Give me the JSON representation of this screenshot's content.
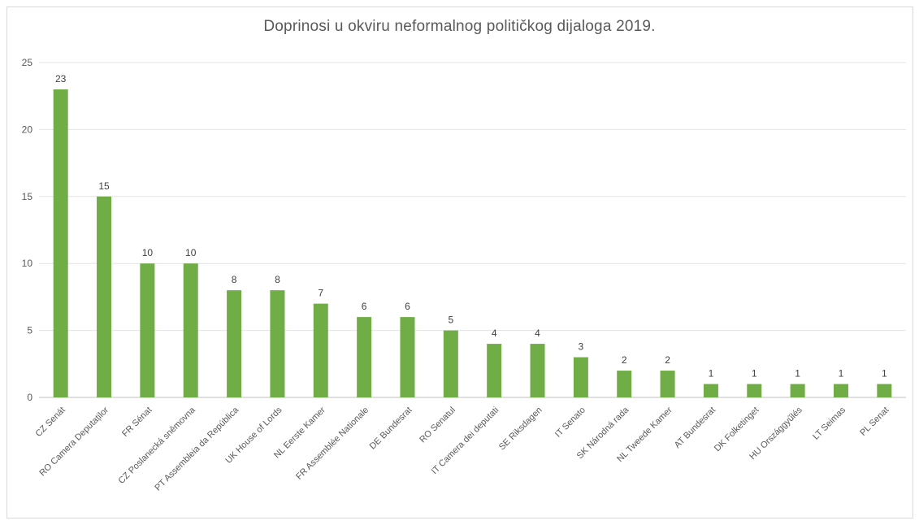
{
  "chart_data": {
    "type": "bar",
    "title": "Doprinosi u okviru neformalnog političkog dijaloga 2019.",
    "xlabel": "",
    "ylabel": "",
    "ylim": [
      0,
      25
    ],
    "yticks": [
      "0",
      "5",
      "10",
      "15",
      "20",
      "25"
    ],
    "grid": true,
    "legend": "none",
    "bar_color": "#70ad47",
    "categories": [
      "CZ  Senát",
      "RO Camera Deputaților",
      "FR Sénat",
      "CZ Poslanecká sněmovna",
      "PT Assembleia da República",
      "UK House of Lords",
      "NL Eerste Kamer",
      "FR Assemblée Nationale",
      "DE Bundesrat",
      "RO Senatul",
      "IT Camera dei deputati",
      "SE Riksdagen",
      "IT Senato",
      "SK Národná rada",
      "NL Tweede Kamer",
      "AT Bundesrat",
      "DK Folketinget",
      "HU Országgyűlés",
      "LT Seimas",
      "PL Senat"
    ],
    "values": [
      23,
      15,
      10,
      10,
      8,
      8,
      7,
      6,
      6,
      5,
      4,
      4,
      3,
      2,
      2,
      1,
      1,
      1,
      1,
      1
    ],
    "data_labels": [
      "23",
      "15",
      "10",
      "10",
      "8",
      "8",
      "7",
      "6",
      "6",
      "5",
      "4",
      "4",
      "3",
      "2",
      "2",
      "1",
      "1",
      "1",
      "1",
      "1"
    ]
  }
}
